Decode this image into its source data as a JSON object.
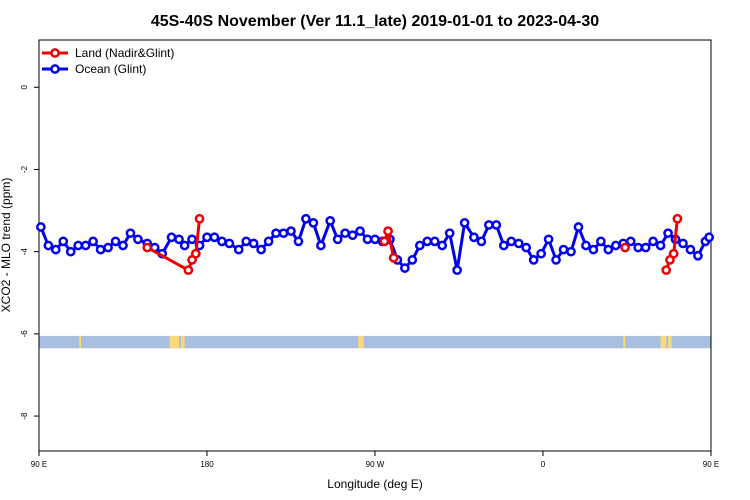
{
  "colors": {
    "land": "#ee0000",
    "ocean": "#0000ee",
    "land_mask_bar": "#a9bfdf",
    "land_mask_patch": "#f7d87a"
  },
  "chart_data": {
    "type": "line",
    "title": "45S-40S November (Ver 11.1_late)   2019-01-01 to 2023-04-30",
    "xlabel": "Longitude (deg E)",
    "ylabel": "XCO2 - MLO trend (ppm)",
    "xlim": [
      90,
      450
    ],
    "ylim": [
      -8.85,
      1.15
    ],
    "x_ticks": [
      {
        "value": 90,
        "label": "90 E"
      },
      {
        "value": 180,
        "label": "180"
      },
      {
        "value": 270,
        "label": "90 W"
      },
      {
        "value": 360,
        "label": "0"
      },
      {
        "value": 450,
        "label": "90 E"
      },
      {
        "value": 540,
        "label": "180"
      }
    ],
    "y_ticks": [
      {
        "value": 0,
        "label": "0"
      },
      {
        "value": -2,
        "label": "-2"
      },
      {
        "value": -4,
        "label": "-4"
      },
      {
        "value": -6,
        "label": "-6"
      },
      {
        "value": -8,
        "label": "-8"
      }
    ],
    "grid": false,
    "legend_position": "top-left",
    "legend": [
      {
        "name": "Land (Nadir&Glint)",
        "color": "#ee0000"
      },
      {
        "name": "Ocean (Glint)",
        "color": "#0000ee"
      }
    ],
    "series": [
      {
        "name": "Land (Nadir&Glint)",
        "segments": [
          [
            [
              148,
              -3.9
            ],
            [
              170,
              -4.45
            ],
            [
              172,
              -4.2
            ],
            [
              174,
              -4.05
            ],
            [
              176,
              -3.2
            ]
          ],
          [
            [
              275,
              -3.75
            ],
            [
              277,
              -3.5
            ],
            [
              280,
              -4.15
            ]
          ],
          [
            [
              404,
              -3.9
            ]
          ],
          [
            [
              426,
              -4.45
            ],
            [
              428,
              -4.2
            ],
            [
              430,
              -4.05
            ],
            [
              432,
              -3.2
            ]
          ]
        ]
      },
      {
        "name": "Ocean (Glint)",
        "x": [
          91,
          95,
          99,
          103,
          107,
          111,
          115,
          119,
          123,
          127,
          131,
          135,
          139,
          143,
          148,
          152,
          156,
          161,
          165,
          168,
          172,
          176,
          180,
          184,
          188,
          192,
          197,
          201,
          205,
          209,
          213,
          217,
          221,
          225,
          229,
          233,
          237,
          241,
          246,
          250,
          254,
          258,
          262,
          266,
          270,
          274,
          278,
          282,
          286,
          290,
          294,
          298,
          302,
          306,
          310,
          314,
          318,
          323,
          327,
          331,
          335,
          339,
          343,
          347,
          351,
          355,
          359,
          363,
          367,
          371,
          375,
          379,
          383,
          387,
          391,
          395,
          399,
          403,
          407,
          411,
          415,
          419,
          423,
          427,
          431,
          435,
          439,
          443,
          447,
          449
        ],
        "y": [
          -3.4,
          -3.85,
          -3.95,
          -3.75,
          -4.0,
          -3.85,
          -3.85,
          -3.75,
          -3.95,
          -3.9,
          -3.75,
          -3.85,
          -3.55,
          -3.7,
          -3.8,
          -3.9,
          -4.05,
          -3.65,
          -3.7,
          -3.85,
          -3.7,
          -3.85,
          -3.65,
          -3.65,
          -3.75,
          -3.8,
          -3.95,
          -3.75,
          -3.8,
          -3.95,
          -3.75,
          -3.55,
          -3.55,
          -3.5,
          -3.75,
          -3.2,
          -3.3,
          -3.85,
          -3.25,
          -3.7,
          -3.55,
          -3.6,
          -3.5,
          -3.7,
          -3.7,
          -3.75,
          -3.7,
          -4.2,
          -4.4,
          -4.2,
          -3.85,
          -3.75,
          -3.75,
          -3.85,
          -3.55,
          -4.45,
          -3.3,
          -3.65,
          -3.75,
          -3.35,
          -3.35,
          -3.85,
          -3.75,
          -3.8,
          -3.9,
          -4.2,
          -4.05,
          -3.7,
          -4.2,
          -3.95,
          -4.0,
          -3.4,
          -3.85,
          -3.95,
          -3.75,
          -3.95,
          -3.85,
          -3.8,
          -3.75,
          -3.9,
          -3.9,
          -3.75,
          -3.85,
          -3.55,
          -3.7,
          -3.8,
          -3.95,
          -4.1,
          -3.75,
          -3.65
        ]
      }
    ],
    "land_mask_band": {
      "y_range": [
        -6.35,
        -6.05
      ],
      "land_spans": [
        [
          111.5,
          112.5
        ],
        [
          160,
          165
        ],
        [
          166,
          168
        ],
        [
          261,
          264
        ],
        [
          403,
          404
        ],
        [
          423,
          426
        ],
        [
          427,
          429
        ]
      ]
    }
  }
}
